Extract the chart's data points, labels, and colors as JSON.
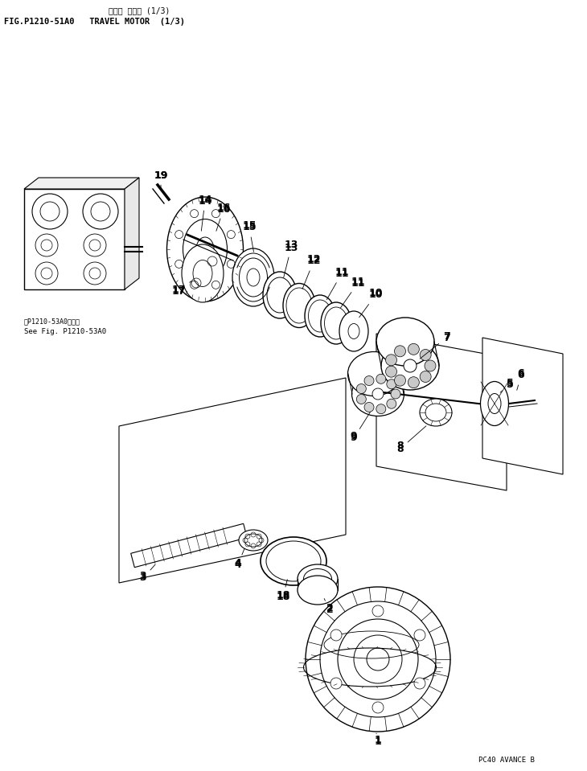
{
  "title_japanese": "サーボ モータ (1/3)",
  "title_english": "FIG.P1210-51A0   TRAVEL MOTOR  (1/3)",
  "footer": "PC40 AVANCE B",
  "bg_color": "#ffffff",
  "line_color": "#000000",
  "ref_note_jp": "第P1210-53A0図参照",
  "ref_note_en": "See Fig. P1210-53A0",
  "figsize": [
    7.3,
    9.59
  ],
  "dpi": 100
}
